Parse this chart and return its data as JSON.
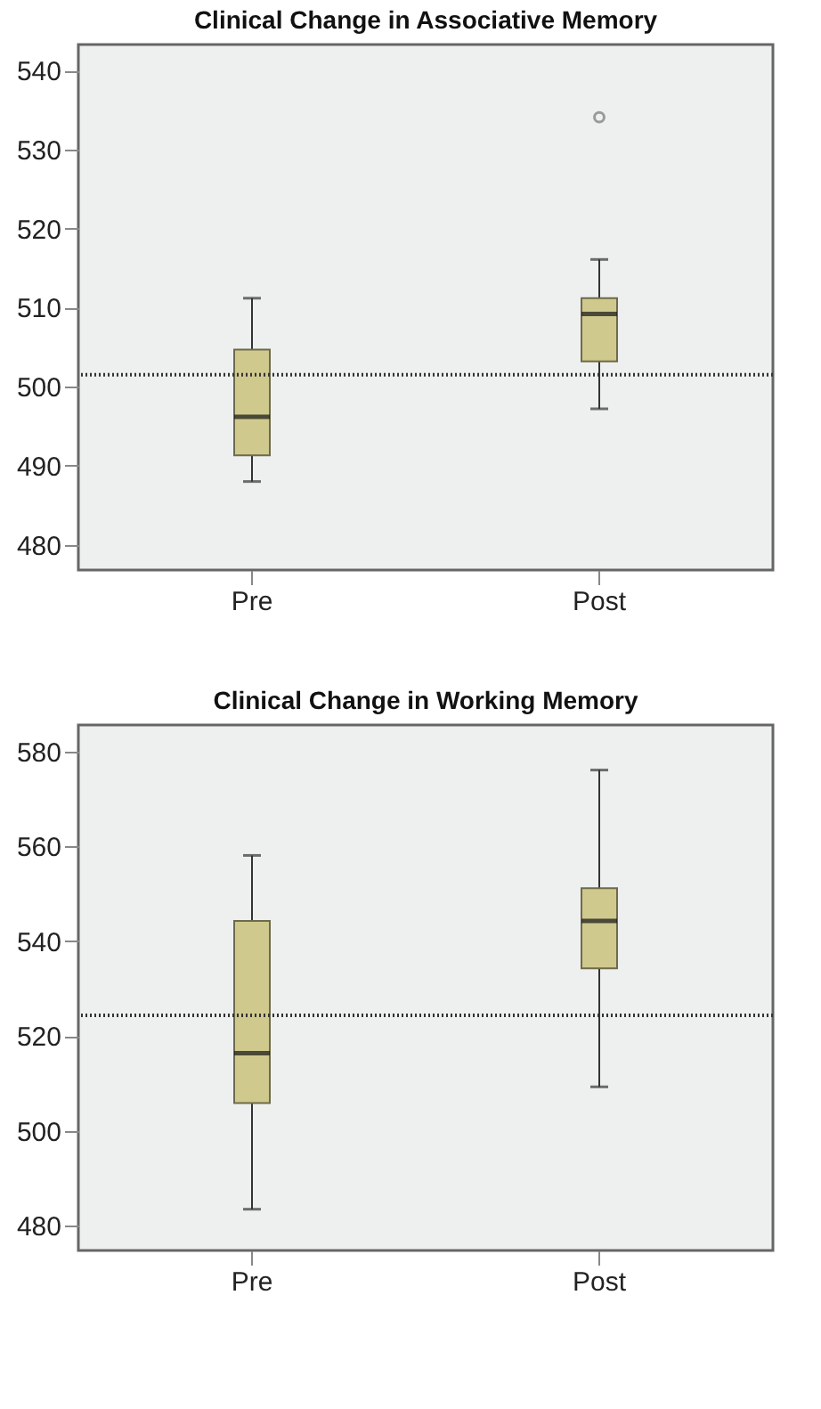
{
  "chart_data": [
    {
      "type": "box",
      "title": "Clinical Change in Associative Memory",
      "categories": [
        "Pre",
        "Post"
      ],
      "color": "#cfc98e",
      "boxes": [
        {
          "low": 488,
          "q1": 491.3,
          "median": 496.2,
          "q3": 504.7,
          "high": 511.2
        },
        {
          "low": 497.2,
          "q1": 503.2,
          "median": 509.2,
          "q3": 511.2,
          "high": 516.1,
          "outliers": [
            534.1
          ]
        }
      ],
      "ylim": [
        476.8,
        543.3
      ],
      "yticks": [
        480,
        490,
        500,
        510,
        520,
        530,
        540
      ],
      "ref_lines": [
        {
          "axis": "y",
          "value": 501.5,
          "line_style": "dotted"
        }
      ]
    },
    {
      "type": "box",
      "title": "Clinical Change in Working Memory",
      "categories": [
        "Pre",
        "Post"
      ],
      "color": "#cfc98e",
      "boxes": [
        {
          "low": 483.5,
          "q1": 505.9,
          "median": 516.4,
          "q3": 544.3,
          "high": 558.1
        },
        {
          "low": 509.3,
          "q1": 534.3,
          "median": 544.3,
          "q3": 551.2,
          "high": 576.1
        }
      ],
      "ylim": [
        474.8,
        585.6
      ],
      "yticks": [
        480,
        500,
        520,
        540,
        560,
        580
      ],
      "ref_lines": [
        {
          "axis": "y",
          "value": 524.4,
          "line_style": "dotted"
        }
      ]
    }
  ]
}
